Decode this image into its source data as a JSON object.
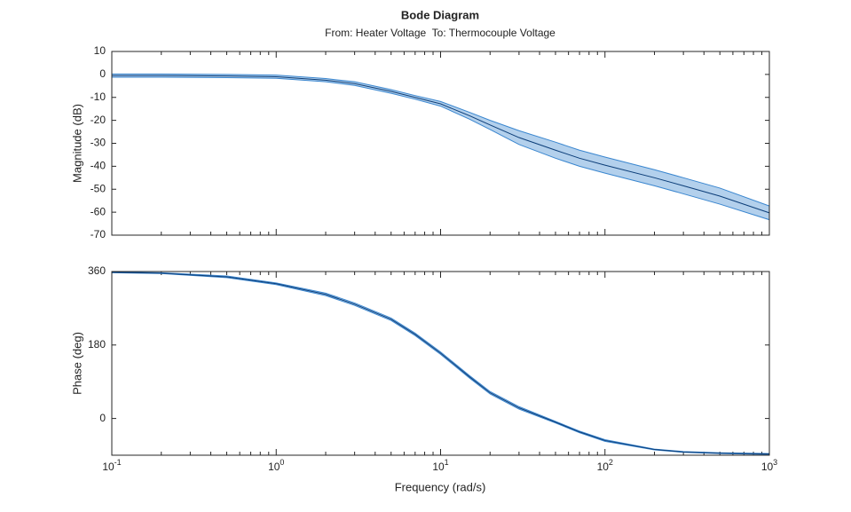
{
  "chart_data": [
    {
      "type": "line",
      "title": "Bode Diagram",
      "subtitle": "From: Heater Voltage  To: Thermocouple Voltage",
      "ylabel": "Magnitude (dB)",
      "xscale": "log",
      "xminorticks": true,
      "x": [
        0.1,
        0.2,
        0.5,
        1,
        2,
        3,
        5,
        7,
        10,
        15,
        20,
        30,
        50,
        70,
        100,
        200,
        300,
        500,
        1000
      ],
      "values": [
        -0.5,
        -0.5,
        -0.7,
        -1,
        -2.5,
        -4,
        -7.4,
        -10,
        -12.8,
        -18,
        -22,
        -27.5,
        -33,
        -36.5,
        -39.5,
        -45,
        -48.5,
        -53,
        -60.3
      ],
      "band_high": [
        0.2,
        0.2,
        0,
        -0.3,
        -1.8,
        -3.2,
        -6.6,
        -9.2,
        -11.8,
        -16.5,
        -20,
        -24.5,
        -29.5,
        -33,
        -36,
        -41.5,
        -45,
        -49.5,
        -57.3
      ],
      "band_low": [
        -1.2,
        -1.2,
        -1.4,
        -1.7,
        -3.2,
        -4.8,
        -8.2,
        -10.8,
        -13.8,
        -19.5,
        -24,
        -30.5,
        -36.5,
        -40,
        -43,
        -48.5,
        -52,
        -56.5,
        -63.3
      ],
      "color": "#0b3d78",
      "band_color": "#b3d0ec",
      "band_edge_color": "#3a86cf",
      "xlim": [
        0.1,
        1000
      ],
      "ylim": [
        -70,
        10
      ],
      "yticks": [
        10,
        0,
        -10,
        -20,
        -30,
        -40,
        -50,
        -60,
        -70
      ]
    },
    {
      "type": "line",
      "ylabel": "Phase (deg)",
      "xlabel": "Frequency (rad/s)",
      "xscale": "log",
      "xminorticks": true,
      "x": [
        0.1,
        0.2,
        0.5,
        1,
        2,
        3,
        5,
        7,
        10,
        15,
        20,
        30,
        50,
        70,
        100,
        200,
        300,
        500,
        1000
      ],
      "values": [
        358,
        356,
        347,
        330,
        304,
        280,
        243,
        206,
        160,
        102,
        63,
        26,
        -9,
        -33,
        -54,
        -76,
        -82,
        -85,
        -87
      ],
      "band_high": [
        359,
        357,
        349,
        332,
        307,
        283,
        246,
        209,
        163,
        105,
        66,
        29,
        -7,
        -31,
        -52,
        -75,
        -81,
        -84,
        -86
      ],
      "band_low": [
        357,
        355,
        345,
        328,
        301,
        277,
        240,
        203,
        157,
        99,
        60,
        23,
        -11,
        -35,
        -56,
        -77,
        -83,
        -86,
        -88
      ],
      "color": "#0b3d78",
      "band_color": "#b3d0ec",
      "band_edge_color": "#3a86cf",
      "xlim": [
        0.1,
        1000
      ],
      "ylim": [
        -90,
        360
      ],
      "yticks": [
        0,
        180,
        360
      ],
      "xticks": [
        {
          "value": 0.1,
          "label": "10",
          "exponent": "-1"
        },
        {
          "value": 1,
          "label": "10",
          "exponent": "0"
        },
        {
          "value": 10,
          "label": "10",
          "exponent": "1"
        },
        {
          "value": 100,
          "label": "10",
          "exponent": "2"
        },
        {
          "value": 1000,
          "label": "10",
          "exponent": "3"
        }
      ]
    }
  ]
}
